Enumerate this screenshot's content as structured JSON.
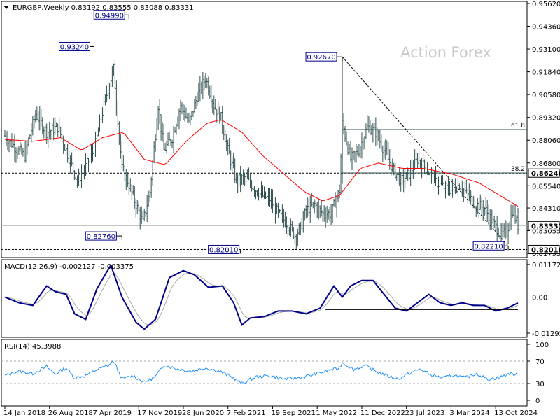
{
  "header": {
    "symbol_line": "EURGBP,Weekly  0.83192 0.83555 0.83088 0.83331"
  },
  "watermark": "Action Forex",
  "colors": {
    "candles": "#2f4f4f",
    "ma": "#ff0000",
    "macd": "#00008b",
    "signal": "#a9a9a9",
    "rsi": "#1e90ff",
    "fib": "#2f4f4f",
    "grid_dash": "#aaaaaa"
  },
  "chart_data": [
    {
      "type": "candlestick",
      "pane": "price",
      "ylim": [
        0.81795,
        0.9562
      ],
      "yticks": [
        "0.95620",
        "0.94360",
        "0.93100",
        "0.91840",
        "0.90580",
        "0.89320",
        "0.88060",
        "0.86800",
        "0.85540",
        "0.84310",
        "0.83055",
        "0.81795"
      ],
      "current_price": "0.83331",
      "marked_levels": [
        {
          "label": "0.86240",
          "value": 0.8624,
          "style": "dashed"
        },
        {
          "label": "0.82010",
          "value": 0.8201,
          "style": "dashed"
        }
      ],
      "fib_levels": [
        {
          "label": "61.8",
          "value": 0.8865
        },
        {
          "label": "38.2",
          "value": 0.8625
        }
      ],
      "annotations": [
        {
          "label": "0.93240",
          "value": 0.9324
        },
        {
          "label": "0.94990",
          "value": 0.9499
        },
        {
          "label": "0.82760",
          "value": 0.8276
        },
        {
          "label": "0.82010",
          "value": 0.8201
        },
        {
          "label": "0.92670",
          "value": 0.9267
        },
        {
          "label": "0.82210",
          "value": 0.8221
        }
      ],
      "close_path": [
        {
          "week": 0,
          "v": 0.883
        },
        {
          "week": 8,
          "v": 0.876
        },
        {
          "week": 14,
          "v": 0.872
        },
        {
          "week": 22,
          "v": 0.895
        },
        {
          "week": 30,
          "v": 0.885
        },
        {
          "week": 38,
          "v": 0.888
        },
        {
          "week": 44,
          "v": 0.875
        },
        {
          "week": 52,
          "v": 0.858
        },
        {
          "week": 58,
          "v": 0.866
        },
        {
          "week": 64,
          "v": 0.875
        },
        {
          "week": 72,
          "v": 0.903
        },
        {
          "week": 78,
          "v": 0.92
        },
        {
          "week": 84,
          "v": 0.865
        },
        {
          "week": 88,
          "v": 0.858
        },
        {
          "week": 94,
          "v": 0.845
        },
        {
          "week": 99,
          "v": 0.835
        },
        {
          "week": 104,
          "v": 0.852
        },
        {
          "week": 110,
          "v": 0.9
        },
        {
          "week": 114,
          "v": 0.875
        },
        {
          "week": 120,
          "v": 0.882
        },
        {
          "week": 126,
          "v": 0.9
        },
        {
          "week": 132,
          "v": 0.89
        },
        {
          "week": 138,
          "v": 0.905
        },
        {
          "week": 144,
          "v": 0.915
        },
        {
          "week": 150,
          "v": 0.9
        },
        {
          "week": 155,
          "v": 0.893
        },
        {
          "week": 160,
          "v": 0.875
        },
        {
          "week": 166,
          "v": 0.858
        },
        {
          "week": 172,
          "v": 0.86
        },
        {
          "week": 178,
          "v": 0.855
        },
        {
          "week": 184,
          "v": 0.85
        },
        {
          "week": 190,
          "v": 0.848
        },
        {
          "week": 196,
          "v": 0.84
        },
        {
          "week": 202,
          "v": 0.835
        },
        {
          "week": 208,
          "v": 0.828
        },
        {
          "week": 212,
          "v": 0.832
        },
        {
          "week": 216,
          "v": 0.842
        },
        {
          "week": 222,
          "v": 0.845
        },
        {
          "week": 228,
          "v": 0.84
        },
        {
          "week": 234,
          "v": 0.84
        },
        {
          "week": 240,
          "v": 0.853
        },
        {
          "week": 242,
          "v": 0.89
        },
        {
          "week": 248,
          "v": 0.87
        },
        {
          "week": 254,
          "v": 0.875
        },
        {
          "week": 260,
          "v": 0.888
        },
        {
          "week": 266,
          "v": 0.885
        },
        {
          "week": 272,
          "v": 0.875
        },
        {
          "week": 278,
          "v": 0.865
        },
        {
          "week": 284,
          "v": 0.858
        },
        {
          "week": 290,
          "v": 0.862
        },
        {
          "week": 296,
          "v": 0.87
        },
        {
          "week": 302,
          "v": 0.865
        },
        {
          "week": 308,
          "v": 0.858
        },
        {
          "week": 314,
          "v": 0.855
        },
        {
          "week": 320,
          "v": 0.853
        },
        {
          "week": 326,
          "v": 0.856
        },
        {
          "week": 332,
          "v": 0.85
        },
        {
          "week": 338,
          "v": 0.845
        },
        {
          "week": 344,
          "v": 0.843
        },
        {
          "week": 350,
          "v": 0.835
        },
        {
          "week": 356,
          "v": 0.828
        },
        {
          "week": 360,
          "v": 0.83
        },
        {
          "week": 364,
          "v": 0.842
        },
        {
          "week": 368,
          "v": 0.8333
        }
      ],
      "moving_average": [
        {
          "week": 0,
          "v": 0.881
        },
        {
          "week": 20,
          "v": 0.88
        },
        {
          "week": 40,
          "v": 0.882
        },
        {
          "week": 55,
          "v": 0.875
        },
        {
          "week": 70,
          "v": 0.882
        },
        {
          "week": 85,
          "v": 0.885
        },
        {
          "week": 100,
          "v": 0.87
        },
        {
          "week": 115,
          "v": 0.867
        },
        {
          "week": 130,
          "v": 0.88
        },
        {
          "week": 145,
          "v": 0.89
        },
        {
          "week": 155,
          "v": 0.892
        },
        {
          "week": 170,
          "v": 0.885
        },
        {
          "week": 185,
          "v": 0.872
        },
        {
          "week": 200,
          "v": 0.862
        },
        {
          "week": 215,
          "v": 0.852
        },
        {
          "week": 228,
          "v": 0.847
        },
        {
          "week": 240,
          "v": 0.85
        },
        {
          "week": 255,
          "v": 0.865
        },
        {
          "week": 268,
          "v": 0.868
        },
        {
          "week": 285,
          "v": 0.865
        },
        {
          "week": 300,
          "v": 0.865
        },
        {
          "week": 320,
          "v": 0.862
        },
        {
          "week": 340,
          "v": 0.857
        },
        {
          "week": 368,
          "v": 0.844
        }
      ]
    },
    {
      "type": "line",
      "pane": "macd",
      "title": "MACD(12,26,9) -0.002127 -0.003375",
      "ylim": [
        -0.01295,
        0.0117
      ],
      "yticks": [
        "0.011727",
        "0.00",
        "-0.012951"
      ],
      "series": [
        {
          "values": [
            {
              "week": 0,
              "v": 0.0
            },
            {
              "week": 10,
              "v": -0.002
            },
            {
              "week": 20,
              "v": -0.003
            },
            {
              "week": 30,
              "v": 0.004
            },
            {
              "week": 36,
              "v": 0.002
            },
            {
              "week": 44,
              "v": 0.001
            },
            {
              "week": 50,
              "v": -0.006
            },
            {
              "week": 58,
              "v": -0.008
            },
            {
              "week": 66,
              "v": 0.003
            },
            {
              "week": 76,
              "v": 0.0115
            },
            {
              "week": 84,
              "v": 0.0
            },
            {
              "week": 94,
              "v": -0.009
            },
            {
              "week": 100,
              "v": -0.0115
            },
            {
              "week": 108,
              "v": -0.008
            },
            {
              "week": 118,
              "v": 0.007
            },
            {
              "week": 128,
              "v": 0.0095
            },
            {
              "week": 136,
              "v": 0.008
            },
            {
              "week": 146,
              "v": 0.0035
            },
            {
              "week": 156,
              "v": 0.004
            },
            {
              "week": 164,
              "v": -0.002
            },
            {
              "week": 170,
              "v": -0.01
            },
            {
              "week": 176,
              "v": -0.0075
            },
            {
              "week": 186,
              "v": -0.007
            },
            {
              "week": 196,
              "v": -0.005
            },
            {
              "week": 206,
              "v": -0.005
            },
            {
              "week": 216,
              "v": -0.006
            },
            {
              "week": 226,
              "v": -0.004
            },
            {
              "week": 236,
              "v": 0.004
            },
            {
              "week": 242,
              "v": 0.0
            },
            {
              "week": 248,
              "v": 0.004
            },
            {
              "week": 256,
              "v": 0.006
            },
            {
              "week": 264,
              "v": 0.006
            },
            {
              "week": 272,
              "v": 0.001
            },
            {
              "week": 280,
              "v": -0.004
            },
            {
              "week": 288,
              "v": -0.005
            },
            {
              "week": 296,
              "v": -0.002
            },
            {
              "week": 304,
              "v": 0.001
            },
            {
              "week": 312,
              "v": -0.002
            },
            {
              "week": 320,
              "v": -0.003
            },
            {
              "week": 328,
              "v": -0.002
            },
            {
              "week": 336,
              "v": -0.003
            },
            {
              "week": 344,
              "v": -0.003
            },
            {
              "week": 352,
              "v": -0.005
            },
            {
              "week": 360,
              "v": -0.004
            },
            {
              "week": 368,
              "v": -0.0021
            }
          ]
        }
      ],
      "support_line": [
        {
          "week": 230,
          "v": -0.0045
        },
        {
          "week": 368,
          "v": -0.0045
        }
      ]
    },
    {
      "type": "line",
      "pane": "rsi",
      "title": "RSI(14) 45.3988",
      "ylim": [
        0,
        100
      ],
      "yticks": [
        "100",
        "70",
        "30",
        "0"
      ],
      "levels": [
        70,
        30
      ],
      "series": [
        {
          "values": [
            {
              "week": 0,
              "v": 44
            },
            {
              "week": 10,
              "v": 52
            },
            {
              "week": 20,
              "v": 48
            },
            {
              "week": 30,
              "v": 60
            },
            {
              "week": 36,
              "v": 47
            },
            {
              "week": 44,
              "v": 58
            },
            {
              "week": 50,
              "v": 40
            },
            {
              "week": 58,
              "v": 44
            },
            {
              "week": 66,
              "v": 55
            },
            {
              "week": 74,
              "v": 62
            },
            {
              "week": 78,
              "v": 70
            },
            {
              "week": 84,
              "v": 38
            },
            {
              "week": 92,
              "v": 44
            },
            {
              "week": 100,
              "v": 32
            },
            {
              "week": 108,
              "v": 42
            },
            {
              "week": 114,
              "v": 63
            },
            {
              "week": 124,
              "v": 56
            },
            {
              "week": 134,
              "v": 52
            },
            {
              "week": 144,
              "v": 58
            },
            {
              "week": 154,
              "v": 52
            },
            {
              "week": 164,
              "v": 40
            },
            {
              "week": 170,
              "v": 30
            },
            {
              "week": 180,
              "v": 42
            },
            {
              "week": 190,
              "v": 44
            },
            {
              "week": 200,
              "v": 38
            },
            {
              "week": 210,
              "v": 40
            },
            {
              "week": 220,
              "v": 45
            },
            {
              "week": 230,
              "v": 52
            },
            {
              "week": 240,
              "v": 58
            },
            {
              "week": 242,
              "v": 68
            },
            {
              "week": 250,
              "v": 55
            },
            {
              "week": 258,
              "v": 62
            },
            {
              "week": 266,
              "v": 52
            },
            {
              "week": 274,
              "v": 44
            },
            {
              "week": 282,
              "v": 38
            },
            {
              "week": 290,
              "v": 48
            },
            {
              "week": 298,
              "v": 56
            },
            {
              "week": 306,
              "v": 45
            },
            {
              "week": 314,
              "v": 40
            },
            {
              "week": 322,
              "v": 45
            },
            {
              "week": 330,
              "v": 40
            },
            {
              "week": 338,
              "v": 48
            },
            {
              "week": 346,
              "v": 38
            },
            {
              "week": 354,
              "v": 40
            },
            {
              "week": 362,
              "v": 48
            },
            {
              "week": 368,
              "v": 45.4
            }
          ]
        }
      ]
    }
  ],
  "x_axis": {
    "ticks": [
      "14 Jan 2018",
      "26 Aug 2018",
      "7 Apr 2019",
      "17 Nov 2019",
      "28 Jun 2020",
      "7 Feb 2021",
      "19 Sep 2021",
      "1 May 2022",
      "11 Dec 2022",
      "23 Jul 2023",
      "3 Mar 2024",
      "13 Oct 2024"
    ]
  }
}
